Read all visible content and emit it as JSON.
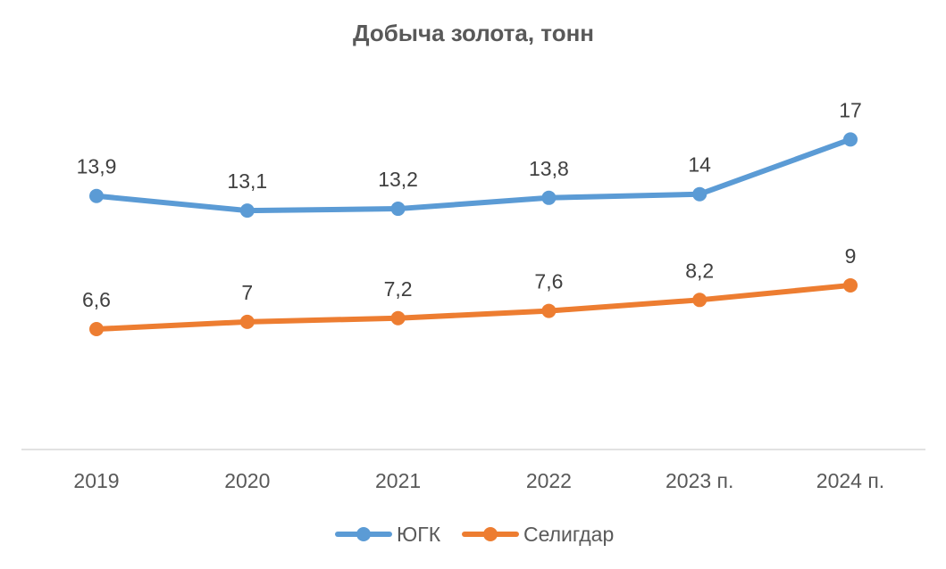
{
  "chart_data": {
    "type": "line",
    "title": "Добыча золота, тонн",
    "categories": [
      "2019",
      "2020",
      "2021",
      "2022",
      "2023 п.",
      "2024 п."
    ],
    "series": [
      {
        "name": "ЮГК",
        "color": "#5B9BD5",
        "values": [
          13.9,
          13.1,
          13.2,
          13.8,
          14,
          17
        ],
        "labels": [
          "13,9",
          "13,1",
          "13,2",
          "13,8",
          "14",
          "17"
        ]
      },
      {
        "name": "Селигдар",
        "color": "#ED7D31",
        "values": [
          6.6,
          7,
          7.2,
          7.6,
          8.2,
          9
        ],
        "labels": [
          "6,6",
          "7",
          "7,2",
          "7,6",
          "8,2",
          "9"
        ]
      }
    ],
    "ylim": [
      0,
      20
    ],
    "grid": false,
    "legend": "bottom",
    "axis_color": "#D9D9D9",
    "text_color": "#595959"
  }
}
